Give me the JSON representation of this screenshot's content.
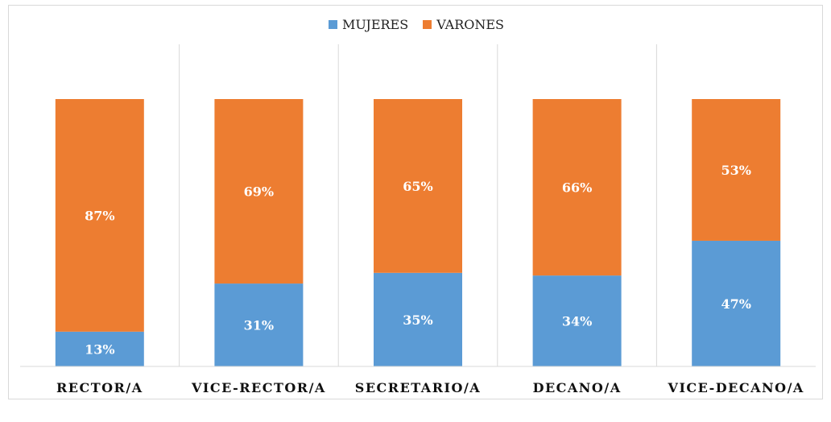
{
  "chart_data": {
    "type": "bar",
    "stacked": true,
    "categories": [
      "RECTOR/A",
      "VICE-RECTOR/A",
      "SECRETARIO/A",
      "DECANO/A",
      "VICE-DECANO/A"
    ],
    "series": [
      {
        "name": "MUJERES",
        "values": [
          13,
          31,
          35,
          34,
          47
        ],
        "labels": [
          "13%",
          "31%",
          "35%",
          "34%",
          "47%"
        ],
        "color": "#5b9bd5"
      },
      {
        "name": "VARONES",
        "values": [
          87,
          69,
          65,
          66,
          53
        ],
        "labels": [
          "87%",
          "69%",
          "65%",
          "66%",
          "53%"
        ],
        "color": "#ed7d31"
      }
    ],
    "ylim": [
      0,
      100
    ],
    "grid": false,
    "legend_position": "top",
    "category_separators": true
  }
}
